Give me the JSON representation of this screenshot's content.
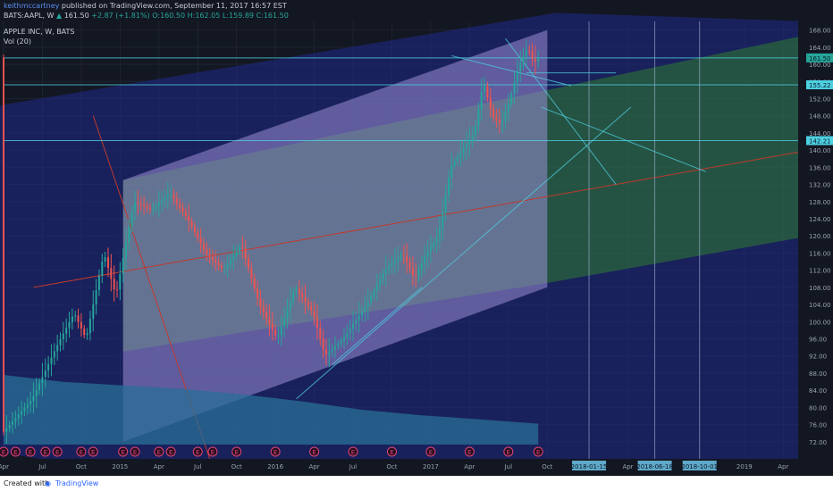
{
  "header": {
    "author": "keithmccartney",
    "published": "published on TradingView.com, September 11, 2017 16:57 EST",
    "symbol": "BATS:AAPL, W",
    "last": "161.50",
    "change": "+2.87 (+1.81%)",
    "open": "O:160.50",
    "high": "H:162.05",
    "low": "L:159.89",
    "close": "C:161.50",
    "study_title": "APPLE INC, W, BATS",
    "study_vol": "Vol (20)"
  },
  "footer": {
    "created_with": "Created with",
    "brand": "TradingView"
  },
  "colors": {
    "bg": "#131722",
    "up": "#26a69a",
    "down": "#ef5350",
    "pitchfork_outer": "#1f2a8c",
    "pitchfork_inner": "#9a8ed6",
    "pitchfork_green": "#2f7d2f",
    "median": "#c0392b",
    "trendline": "#4dd0e1",
    "volume": "#2a6f97"
  },
  "chart_data": {
    "type": "candlestick",
    "symbol": "AAPL",
    "timeframe": "W",
    "ylim": [
      68,
      170
    ],
    "y_ticks": [
      72,
      76,
      80,
      84,
      88,
      92,
      96,
      100,
      104,
      108,
      112,
      116,
      120,
      124,
      128,
      132,
      136,
      140,
      144,
      148,
      152,
      156,
      160,
      164,
      168
    ],
    "x_ticks": [
      "Apr",
      "Jul",
      "Oct",
      "2015",
      "Apr",
      "Jul",
      "Oct",
      "2016",
      "Apr",
      "Jul",
      "Oct",
      "2017",
      "Apr",
      "Jul",
      "Oct",
      "2018-01-15",
      "Apr",
      "2018-06-18",
      "2018-10-01",
      "2019",
      "Apr"
    ],
    "x_tick_t": [
      0,
      13,
      26,
      39,
      52,
      65,
      78,
      91,
      104,
      117,
      130,
      143,
      156,
      169,
      182,
      196,
      209,
      218,
      233,
      248,
      261
    ],
    "x_max": 266,
    "price_labels": [
      {
        "value": 161.5,
        "text": "161.50",
        "color": "#26a69a"
      },
      {
        "value": 155.22,
        "text": "155.22",
        "color": "#4dd0e1"
      },
      {
        "value": 142.21,
        "text": "142.21",
        "color": "#4dd0e1"
      }
    ],
    "horizontal_lines": [
      155.22,
      142.21,
      161.5
    ],
    "vertical_lines_t": [
      196,
      218,
      233
    ],
    "anchors": [
      {
        "t": 0,
        "v": 74
      },
      {
        "t": 10,
        "v": 82
      },
      {
        "t": 18,
        "v": 94
      },
      {
        "t": 24,
        "v": 102
      },
      {
        "t": 28,
        "v": 96
      },
      {
        "t": 34,
        "v": 116
      },
      {
        "t": 38,
        "v": 106
      },
      {
        "t": 44,
        "v": 128
      },
      {
        "t": 50,
        "v": 126
      },
      {
        "t": 56,
        "v": 130
      },
      {
        "t": 62,
        "v": 124
      },
      {
        "t": 68,
        "v": 116
      },
      {
        "t": 74,
        "v": 112
      },
      {
        "t": 80,
        "v": 118
      },
      {
        "t": 86,
        "v": 104
      },
      {
        "t": 92,
        "v": 96
      },
      {
        "t": 98,
        "v": 108
      },
      {
        "t": 104,
        "v": 102
      },
      {
        "t": 108,
        "v": 92
      },
      {
        "t": 114,
        "v": 96
      },
      {
        "t": 122,
        "v": 104
      },
      {
        "t": 128,
        "v": 112
      },
      {
        "t": 134,
        "v": 116
      },
      {
        "t": 138,
        "v": 110
      },
      {
        "t": 142,
        "v": 116
      },
      {
        "t": 146,
        "v": 120
      },
      {
        "t": 150,
        "v": 136
      },
      {
        "t": 154,
        "v": 140
      },
      {
        "t": 158,
        "v": 144
      },
      {
        "t": 161,
        "v": 156
      },
      {
        "t": 164,
        "v": 148
      },
      {
        "t": 167,
        "v": 146
      },
      {
        "t": 170,
        "v": 152
      },
      {
        "t": 173,
        "v": 160
      },
      {
        "t": 176,
        "v": 164
      },
      {
        "t": 178,
        "v": 160
      },
      {
        "t": 179,
        "v": 161.5
      }
    ],
    "volume_profile": [
      {
        "t": 0,
        "v": 1.0
      },
      {
        "t": 20,
        "v": 0.9
      },
      {
        "t": 40,
        "v": 0.85
      },
      {
        "t": 60,
        "v": 0.8
      },
      {
        "t": 80,
        "v": 0.72
      },
      {
        "t": 100,
        "v": 0.62
      },
      {
        "t": 120,
        "v": 0.5
      },
      {
        "t": 140,
        "v": 0.42
      },
      {
        "t": 160,
        "v": 0.36
      },
      {
        "t": 179,
        "v": 0.3
      }
    ],
    "earnings_t": [
      0,
      4,
      9,
      14,
      18,
      26,
      30,
      40,
      44,
      52,
      56,
      65,
      70,
      78,
      91,
      104,
      117,
      130,
      143,
      156,
      169,
      179
    ],
    "earnings_label": "E",
    "pitchfork": {
      "outer_band": [
        [
          -5,
          150
        ],
        [
          185,
          172
        ],
        [
          270,
          170
        ],
        [
          270,
          60
        ],
        [
          80,
          60
        ],
        [
          -5,
          70
        ]
      ],
      "inner_band": [
        [
          40,
          133
        ],
        [
          182,
          168
        ],
        [
          182,
          108
        ],
        [
          40,
          72
        ]
      ],
      "green_band": [
        [
          40,
          133
        ],
        [
          270,
          167
        ],
        [
          270,
          120
        ],
        [
          182,
          109
        ],
        [
          40,
          93
        ]
      ],
      "median_line": [
        [
          10,
          108
        ],
        [
          270,
          140
        ]
      ],
      "left_fan": [
        [
          30,
          148
        ],
        [
          70,
          66
        ]
      ]
    },
    "trendlines": [
      [
        [
          98,
          82
        ],
        [
          210,
          150
        ]
      ],
      [
        [
          110,
          90
        ],
        [
          140,
          108
        ]
      ],
      [
        [
          168,
          166
        ],
        [
          205,
          132
        ]
      ],
      [
        [
          150,
          162
        ],
        [
          190,
          155
        ]
      ],
      [
        [
          180,
          150
        ],
        [
          235,
          135
        ]
      ],
      [
        [
          175,
          158
        ],
        [
          205,
          158
        ]
      ]
    ]
  }
}
